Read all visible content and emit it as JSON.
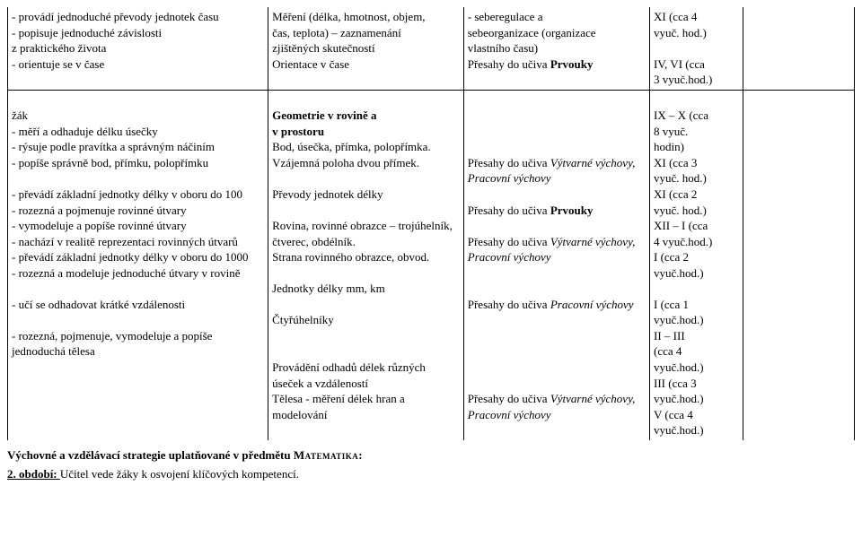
{
  "row1": {
    "c1l1": "- provádí jednoduché převody jednotek času",
    "c1l2": "- popisuje jednoduché závislosti",
    "c1l3": "z praktického života",
    "c1l4": "- orientuje se v čase",
    "c2l1": "Měření (délka, hmotnost, objem,",
    "c2l2": "čas, teplota) – zaznamenání",
    "c2l3": "zjištěných skutečností",
    "c2l4": "Orientace v čase",
    "c3l1": "- seberegulace a",
    "c3l2": "sebeorganizace (organizace",
    "c3l3": "vlastního času)",
    "c3l4a": "Přesahy do učiva ",
    "c3l4b": "Prvouky",
    "c4l1": "XI (cca 4",
    "c4l2": "vyuč. hod.)",
    "c4l3": "IV, VI (cca",
    "c4l4": "3 vyuč.hod.)"
  },
  "row2": {
    "c1": {
      "l1": "žák",
      "l2": "- měří a odhaduje délku úsečky",
      "l3": "- rýsuje podle pravítka a správným náčiním",
      "l4": "- popíše správně bod, přímku, polopřímku",
      "l5": "- převádí základní jednotky délky v oboru do 100",
      "l6": "- rozezná a pojmenuje rovinné útvary",
      "l7": "- vymodeluje a popíše rovinné útvary",
      "l8": "- nachází v realitě reprezentaci rovinných útvarů",
      "l9": "- převádí základní jednotky délky v oboru do 1000",
      "l10": "- rozezná a modeluje jednoduché útvary v rovině",
      "l11": "- učí se odhadovat krátké vzdálenosti",
      "l12": "- rozezná, pojmenuje, vymodeluje a popíše jednoduchá tělesa"
    },
    "c2": {
      "l1a": "Geometrie v rovině a",
      "l1b": "v prostoru",
      "l2": "Bod, úsečka, přímka, polopřímka.",
      "l3": "Vzájemná poloha dvou přímek.",
      "l4": "Převody jednotek délky",
      "l5": "Rovina, rovinné obrazce – trojúhelník, čtverec, obdélník.",
      "l6": "Strana rovinného obrazce, obvod.",
      "l7": "Jednotky délky mm, km",
      "l8": "Čtyřúhelníky",
      "l9": "Provádění odhadů délek různých úseček a vzdáleností",
      "l10": "Tělesa  - měření délek hran a modelování"
    },
    "c3": {
      "prefix": "Přesahy do učiva ",
      "vytvarne": "Výtvarné výchovy, Pracovní výchovy",
      "prvouky": "Prvouky",
      "pracovni": "Pracovní výchovy"
    },
    "c4": {
      "l1": "IX – X (cca",
      "l2": "8 vyuč.",
      "l3": "hodin)",
      "l4": "XI (cca 3",
      "l5": "vyuč. hod.)",
      "l6": "XI (cca 2",
      "l7": "vyuč. hod.)",
      "l8": "XII – I (cca",
      "l9": "4 vyuč.hod.)",
      "l10": "I (cca 2",
      "l11": "vyuč.hod.)",
      "l12": "I (cca 1",
      "l13": "vyuč.hod.)",
      "l14": "II – III",
      "l15": "(cca 4",
      "l16": "vyuč.hod.)",
      "l17": "III (cca 3",
      "l18": "vyuč.hod.)",
      "l19": "V (cca 4",
      "l20": "vyuč.hod.)"
    }
  },
  "footer": {
    "line1a": "Výchovné a vzdělávací strategie uplatňované v předmětu ",
    "line1b": "Matematika:",
    "line2a": "2. období: ",
    "line2b": "Učitel vede žáky k osvojení klíčových kompetencí."
  }
}
